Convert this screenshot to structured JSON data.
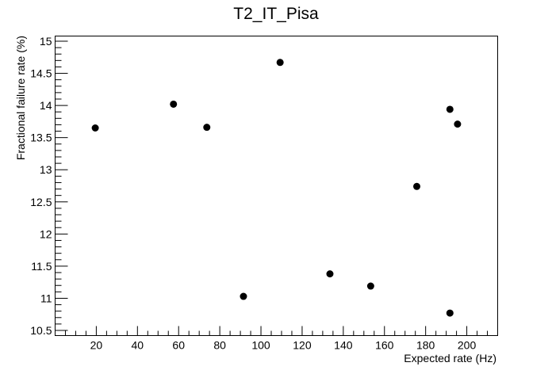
{
  "chart_data": {
    "type": "scatter",
    "title": "T2_IT_Pisa",
    "xlabel": "Expected rate (Hz)",
    "ylabel": "Fractional failure rate (%)",
    "xlim": [
      0,
      215
    ],
    "ylim": [
      10.42,
      15.08
    ],
    "xticks": [
      20,
      40,
      60,
      80,
      100,
      120,
      140,
      160,
      180,
      200
    ],
    "xtick_labels": [
      "20",
      "40",
      "60",
      "80",
      "100",
      "120",
      "140",
      "160",
      "180",
      "200"
    ],
    "yticks": [
      10.5,
      11,
      11.5,
      12,
      12.5,
      13,
      13.5,
      14,
      14.5,
      15
    ],
    "ytick_labels": [
      "10.5",
      "11",
      "11.5",
      "12",
      "12.5",
      "13",
      "13.5",
      "14",
      "14.5",
      "15"
    ],
    "grid": false,
    "marker_color": "#000000",
    "points": [
      {
        "x": 19.5,
        "y": 13.65
      },
      {
        "x": 57.5,
        "y": 14.02
      },
      {
        "x": 73.7,
        "y": 13.66
      },
      {
        "x": 91.5,
        "y": 11.03
      },
      {
        "x": 109.3,
        "y": 14.67
      },
      {
        "x": 133.5,
        "y": 11.38
      },
      {
        "x": 153.3,
        "y": 11.19
      },
      {
        "x": 175.7,
        "y": 12.74
      },
      {
        "x": 191.8,
        "y": 13.94
      },
      {
        "x": 195.5,
        "y": 13.71
      },
      {
        "x": 191.8,
        "y": 10.77
      }
    ]
  }
}
